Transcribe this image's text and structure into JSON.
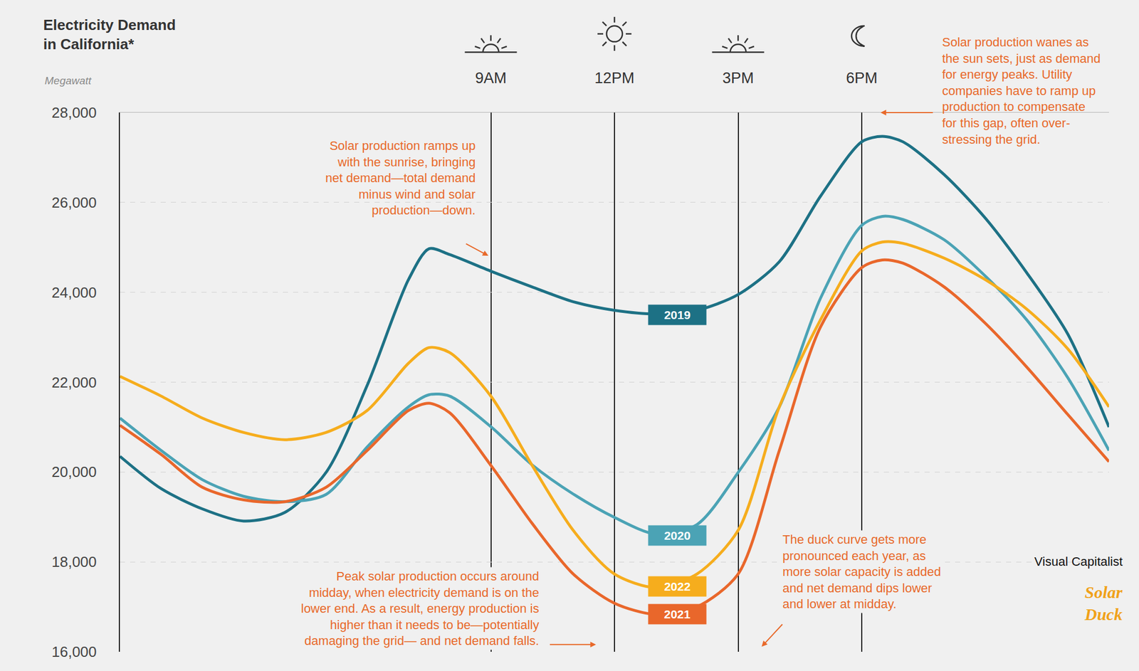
{
  "chart_data": {
    "type": "line",
    "title": "Electricity Demand in California*",
    "subtitle": "Megawatt",
    "x": [
      0,
      1,
      2,
      3,
      4,
      5,
      6,
      7,
      7.5,
      8,
      9,
      10,
      11,
      12,
      13,
      14,
      15,
      16,
      17,
      18,
      18.5,
      19,
      20,
      21,
      22,
      23,
      24
    ],
    "xlim": [
      0,
      24
    ],
    "xticks": [
      {
        "value": 9,
        "label": "9AM"
      },
      {
        "value": 12,
        "label": "12PM"
      },
      {
        "value": 15,
        "label": "3PM"
      },
      {
        "value": 18,
        "label": "6PM"
      }
    ],
    "ylim": [
      16000,
      28000
    ],
    "yticks": [
      {
        "value": 16000,
        "label": "16,000"
      },
      {
        "value": 18000,
        "label": "18,000"
      },
      {
        "value": 20000,
        "label": "20,000"
      },
      {
        "value": 22000,
        "label": "22,000"
      },
      {
        "value": 24000,
        "label": "24,000"
      },
      {
        "value": 26000,
        "label": "26,000"
      },
      {
        "value": 28000,
        "label": "28,000"
      }
    ],
    "grid": true,
    "series": [
      {
        "name": "2019",
        "color": "#1d7185",
        "values": [
          20350,
          19630,
          19180,
          18910,
          19100,
          19990,
          21930,
          24280,
          24970,
          24840,
          24470,
          24120,
          23790,
          23600,
          23520,
          23600,
          23950,
          24680,
          26140,
          27350,
          27470,
          27350,
          26620,
          25650,
          24440,
          23070,
          21000
        ]
      },
      {
        "name": "2020",
        "color": "#4ba3b5",
        "values": [
          21200,
          20480,
          19830,
          19460,
          19340,
          19500,
          20560,
          21450,
          21720,
          21690,
          21010,
          20160,
          19510,
          18990,
          18620,
          18830,
          19990,
          21450,
          23870,
          25490,
          25690,
          25620,
          25170,
          24360,
          23390,
          22100,
          20480
        ]
      },
      {
        "name": "2022",
        "color": "#f6ad1d",
        "values": [
          22130,
          21690,
          21200,
          20880,
          20720,
          20880,
          21370,
          22420,
          22770,
          22660,
          21690,
          20150,
          18700,
          17730,
          17430,
          17730,
          18700,
          21450,
          23390,
          24920,
          25120,
          25090,
          24760,
          24280,
          23630,
          22740,
          21450
        ]
      },
      {
        "name": "2021",
        "color": "#e9672b",
        "values": [
          21040,
          20390,
          19660,
          19380,
          19340,
          19660,
          20480,
          21370,
          21530,
          21320,
          20150,
          18860,
          17730,
          17080,
          16830,
          17000,
          17730,
          20480,
          23230,
          24550,
          24720,
          24650,
          24120,
          23310,
          22340,
          21280,
          20230
        ]
      }
    ],
    "annotations": [
      {
        "lines": [
          "Solar production ramps up",
          "with the sunrise, bringing",
          "net demand—total demand",
          "minus wind and solar",
          "production—down."
        ]
      },
      {
        "lines": [
          "Solar production wanes as",
          "the sun sets, just as demand",
          "for energy peaks. Utility",
          "companies have to ramp up",
          "production to compensate",
          "for this gap, often over-",
          "stressing the grid."
        ]
      },
      {
        "lines": [
          "Peak solar production occurs around",
          "midday, when electricity demand is on the",
          "lower end. As a result, energy production is",
          "higher than it needs to be—potentially",
          "damaging the grid— and net demand falls."
        ]
      },
      {
        "lines": [
          "The duck curve gets more",
          "pronounced each year, as",
          "more solar capacity is added",
          "and net demand dips lower",
          "and lower at midday."
        ]
      }
    ],
    "source": "Visual Capitalist",
    "logo": "Solar Duck"
  }
}
